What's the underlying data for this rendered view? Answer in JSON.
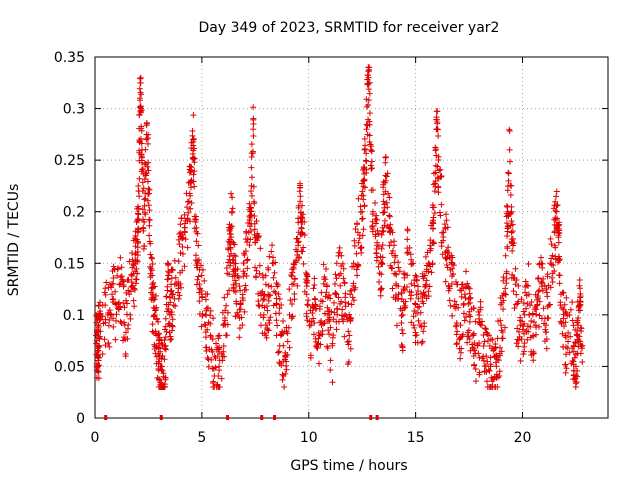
{
  "chart_data": {
    "type": "scatter",
    "title": "Day 349 of 2023, SRMTID for receiver yar2",
    "xlabel": "GPS time / hours",
    "ylabel": "SRMTID / TECUs",
    "xlim": [
      0,
      24
    ],
    "ylim": [
      0,
      0.35
    ],
    "xticks": [
      0,
      5,
      10,
      15,
      20
    ],
    "yticks": [
      0,
      0.05,
      0.1,
      0.15,
      0.2,
      0.25,
      0.3,
      0.35
    ],
    "xtick_labels": [
      "0",
      "5",
      "10",
      "15",
      "20"
    ],
    "ytick_labels": [
      "0",
      "0.05",
      "0.1",
      "0.15",
      "0.2",
      "0.25",
      "0.3",
      "0.35"
    ],
    "grid": true,
    "marker": "+",
    "series_color": "#e00000",
    "series": [
      {
        "name": "SRMTID",
        "points": [
          [
            0.05,
            0.08
          ],
          [
            0.1,
            0.06
          ],
          [
            0.15,
            0.09
          ],
          [
            0.2,
            0.07
          ],
          [
            0.25,
            0.1
          ],
          [
            0.6,
            0.1
          ],
          [
            0.8,
            0.12
          ],
          [
            1.0,
            0.11
          ],
          [
            1.2,
            0.13
          ],
          [
            1.4,
            0.09
          ],
          [
            1.6,
            0.12
          ],
          [
            1.8,
            0.14
          ],
          [
            1.9,
            0.16
          ],
          [
            2.0,
            0.18
          ],
          [
            2.05,
            0.22
          ],
          [
            2.1,
            0.31
          ],
          [
            2.15,
            0.3
          ],
          [
            2.2,
            0.26
          ],
          [
            2.3,
            0.19
          ],
          [
            2.4,
            0.27
          ],
          [
            2.5,
            0.24
          ],
          [
            2.6,
            0.14
          ],
          [
            2.7,
            0.12
          ],
          [
            2.8,
            0.1
          ],
          [
            2.9,
            0.08
          ],
          [
            3.0,
            0.06
          ],
          [
            3.1,
            0.05
          ],
          [
            3.2,
            0.04
          ],
          [
            3.3,
            0.07
          ],
          [
            3.4,
            0.15
          ],
          [
            3.5,
            0.1
          ],
          [
            3.6,
            0.12
          ],
          [
            3.8,
            0.13
          ],
          [
            4.0,
            0.16
          ],
          [
            4.2,
            0.18
          ],
          [
            4.4,
            0.21
          ],
          [
            4.5,
            0.24
          ],
          [
            4.6,
            0.27
          ],
          [
            4.7,
            0.19
          ],
          [
            4.8,
            0.15
          ],
          [
            5.0,
            0.12
          ],
          [
            5.2,
            0.1
          ],
          [
            5.4,
            0.08
          ],
          [
            5.6,
            0.06
          ],
          [
            5.8,
            0.05
          ],
          [
            6.0,
            0.09
          ],
          [
            6.2,
            0.12
          ],
          [
            6.3,
            0.17
          ],
          [
            6.4,
            0.2
          ],
          [
            6.5,
            0.15
          ],
          [
            6.6,
            0.13
          ],
          [
            6.8,
            0.11
          ],
          [
            7.0,
            0.14
          ],
          [
            7.2,
            0.18
          ],
          [
            7.3,
            0.22
          ],
          [
            7.4,
            0.28
          ],
          [
            7.5,
            0.17
          ],
          [
            7.7,
            0.14
          ],
          [
            7.9,
            0.1
          ],
          [
            8.1,
            0.12
          ],
          [
            8.3,
            0.15
          ],
          [
            8.5,
            0.11
          ],
          [
            8.7,
            0.08
          ],
          [
            8.9,
            0.06
          ],
          [
            9.1,
            0.1
          ],
          [
            9.3,
            0.13
          ],
          [
            9.5,
            0.17
          ],
          [
            9.6,
            0.21
          ],
          [
            9.7,
            0.19
          ],
          [
            9.9,
            0.12
          ],
          [
            10.1,
            0.09
          ],
          [
            10.3,
            0.11
          ],
          [
            10.5,
            0.08
          ],
          [
            10.7,
            0.13
          ],
          [
            10.9,
            0.1
          ],
          [
            11.1,
            0.07
          ],
          [
            11.3,
            0.12
          ],
          [
            11.5,
            0.14
          ],
          [
            11.7,
            0.1
          ],
          [
            11.9,
            0.08
          ],
          [
            12.1,
            0.15
          ],
          [
            12.3,
            0.18
          ],
          [
            12.5,
            0.2
          ],
          [
            12.6,
            0.23
          ],
          [
            12.7,
            0.28
          ],
          [
            12.8,
            0.33
          ],
          [
            12.9,
            0.26
          ],
          [
            13.0,
            0.2
          ],
          [
            13.2,
            0.17
          ],
          [
            13.4,
            0.15
          ],
          [
            13.5,
            0.21
          ],
          [
            13.6,
            0.23
          ],
          [
            13.8,
            0.18
          ],
          [
            14.0,
            0.14
          ],
          [
            14.2,
            0.12
          ],
          [
            14.4,
            0.1
          ],
          [
            14.6,
            0.16
          ],
          [
            14.8,
            0.13
          ],
          [
            15.0,
            0.11
          ],
          [
            15.2,
            0.09
          ],
          [
            15.4,
            0.12
          ],
          [
            15.6,
            0.15
          ],
          [
            15.8,
            0.19
          ],
          [
            15.9,
            0.22
          ],
          [
            16.0,
            0.28
          ],
          [
            16.1,
            0.24
          ],
          [
            16.3,
            0.18
          ],
          [
            16.5,
            0.16
          ],
          [
            16.7,
            0.13
          ],
          [
            16.9,
            0.11
          ],
          [
            17.1,
            0.09
          ],
          [
            17.3,
            0.12
          ],
          [
            17.5,
            0.1
          ],
          [
            17.7,
            0.08
          ],
          [
            17.9,
            0.07
          ],
          [
            18.1,
            0.09
          ],
          [
            18.3,
            0.06
          ],
          [
            18.5,
            0.05
          ],
          [
            18.7,
            0.04
          ],
          [
            18.8,
            0.06
          ],
          [
            19.0,
            0.09
          ],
          [
            19.2,
            0.12
          ],
          [
            19.3,
            0.2
          ],
          [
            19.4,
            0.26
          ],
          [
            19.5,
            0.17
          ],
          [
            19.7,
            0.11
          ],
          [
            19.9,
            0.09
          ],
          [
            20.1,
            0.1
          ],
          [
            20.3,
            0.12
          ],
          [
            20.5,
            0.08
          ],
          [
            20.7,
            0.11
          ],
          [
            20.9,
            0.13
          ],
          [
            21.1,
            0.09
          ],
          [
            21.3,
            0.15
          ],
          [
            21.5,
            0.18
          ],
          [
            21.6,
            0.2
          ],
          [
            21.7,
            0.17
          ],
          [
            21.8,
            0.12
          ],
          [
            22.0,
            0.08
          ],
          [
            22.2,
            0.1
          ],
          [
            22.4,
            0.07
          ],
          [
            22.5,
            0.05
          ],
          [
            22.6,
            0.09
          ],
          [
            22.7,
            0.11
          ],
          [
            22.8,
            0.07
          ]
        ]
      }
    ],
    "baseline_markers_x": [
      0.5,
      3.1,
      6.2,
      7.8,
      8.4,
      12.9,
      13.2
    ],
    "generated_cloud_approx": true
  }
}
